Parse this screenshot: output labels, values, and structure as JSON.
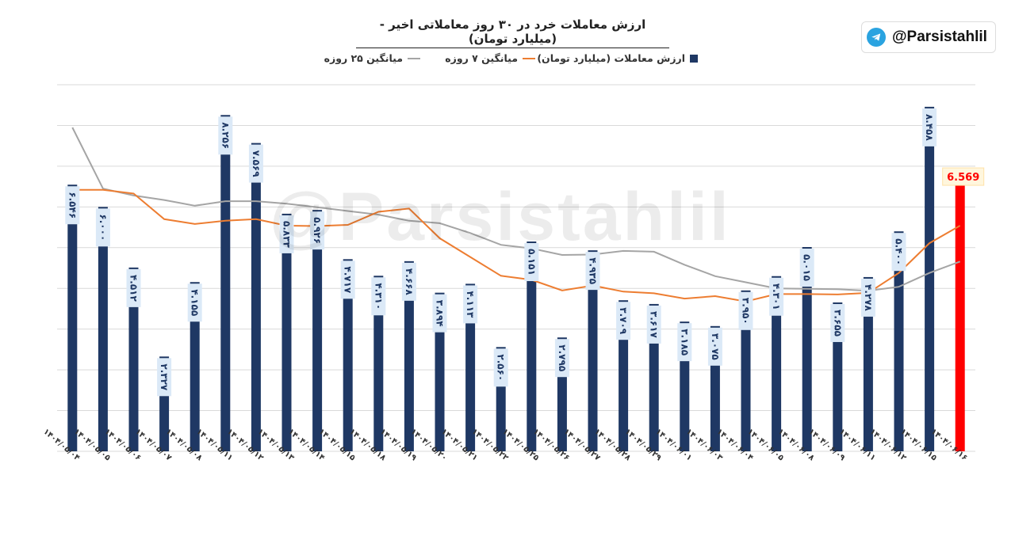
{
  "header": {
    "title": "ارزش معاملات خرد در ۳۰ روز معاملاتی اخیر - (میلیارد تومان)",
    "channel_handle": "@Parsistahlil",
    "channel_icon": "telegram-icon",
    "watermark": "@Parsistahlil"
  },
  "colors": {
    "bar": "#1f3864",
    "last_bar": "#ff0000",
    "ma7": "#ed7d31",
    "ma25": "#a5a5a5",
    "grid": "#d9d9d9",
    "label_bg": "#dbe9f7"
  },
  "chart_data": {
    "type": "bar",
    "title": "ارزش معاملات خرد در ۳۰ روز معاملاتی اخیر - (میلیارد تومان)",
    "legend_position": "top",
    "grid": true,
    "ylim": [
      0,
      9
    ],
    "categories": [
      "۱۴۰۴/۰۵/۰۴",
      "۱۴۰۴/۰۵/۰۵",
      "۱۴۰۴/۰۵/۰۶",
      "۱۴۰۴/۰۵/۰۷",
      "۱۴۰۴/۰۵/۰۸",
      "۱۴۰۴/۰۵/۱۱",
      "۱۴۰۴/۰۵/۱۲",
      "۱۴۰۴/۰۵/۱۳",
      "۱۴۰۴/۰۵/۱۴",
      "۱۴۰۴/۰۵/۱۵",
      "۱۴۰۴/۰۵/۱۸",
      "۱۴۰۴/۰۵/۱۹",
      "۱۴۰۴/۰۵/۲۰",
      "۱۴۰۴/۰۵/۲۱",
      "۱۴۰۴/۰۵/۲۲",
      "۱۴۰۴/۰۵/۲۵",
      "۱۴۰۴/۰۵/۲۶",
      "۱۴۰۴/۰۵/۲۷",
      "۱۴۰۴/۰۵/۲۸",
      "۱۴۰۴/۰۵/۲۹",
      "۱۴۰۴/۰۶/۰۱",
      "۱۴۰۴/۰۶/۰۳",
      "۱۴۰۴/۰۶/۰۴",
      "۱۴۰۴/۰۶/۰۵",
      "۱۴۰۴/۰۶/۰۸",
      "۱۴۰۴/۰۶/۰۹",
      "۱۴۰۴/۰۶/۱۱",
      "۱۴۰۴/۰۶/۱۲",
      "۱۴۰۴/۰۶/۱۵",
      "۱۴۰۴/۰۶/۱۶"
    ],
    "series": [
      {
        "name": "ارزش معاملات (میلیارد تومان)",
        "kind": "bar",
        "values": [
          6.546,
          6.0,
          4.512,
          2.327,
          4.155,
          8.256,
          7.569,
          5.833,
          5.926,
          4.717,
          4.31,
          4.668,
          3.894,
          4.113,
          2.56,
          5.151,
          2.795,
          4.935,
          3.709,
          3.617,
          3.185,
          3.075,
          3.95,
          4.301,
          5.015,
          3.655,
          4.278,
          5.4,
          8.458,
          6.569
        ],
        "labels": [
          "۶.۵۴۶",
          "۶.۰۰۰",
          "۴.۵۱۲",
          "۲.۳۲۷",
          "۴.۱۵۵",
          "۸.۲۵۶",
          "۷.۵۶۹",
          "۵.۸۳۳",
          "۵.۹۲۶",
          "۴.۷۱۷",
          "۴.۳۱۰",
          "۴.۶۶۸",
          "۳.۸۹۴",
          "۴.۱۱۳",
          "۲.۵۶۰",
          "۵.۱۵۱",
          "۲.۷۹۵",
          "۴.۹۳۵",
          "۳.۷۰۹",
          "۳.۶۱۷",
          "۳.۱۸۵",
          "۳.۰۷۵",
          "۳.۹۵۰",
          "۴.۳۰۱",
          "۵.۰۱۵",
          "۳.۶۵۵",
          "۴.۲۷۸",
          "۵.۴۰۰",
          "۸.۴۵۸",
          "6.569"
        ]
      },
      {
        "name": "میانگین ۷ روزه",
        "kind": "line",
        "values": [
          6.42,
          6.42,
          6.33,
          5.7,
          5.58,
          5.66,
          5.7,
          5.54,
          5.53,
          5.56,
          5.88,
          5.96,
          5.23,
          4.77,
          4.31,
          4.21,
          3.95,
          4.07,
          3.92,
          3.88,
          3.75,
          3.81,
          3.68,
          3.86,
          3.86,
          3.85,
          3.89,
          4.38,
          5.11,
          5.54
        ]
      },
      {
        "name": "میانگین ۲۵ روزه",
        "kind": "line",
        "values": [
          7.95,
          6.45,
          6.28,
          6.17,
          6.03,
          6.14,
          6.14,
          6.08,
          5.99,
          5.9,
          5.81,
          5.66,
          5.6,
          5.36,
          5.07,
          4.98,
          4.82,
          4.83,
          4.92,
          4.9,
          4.58,
          4.3,
          4.15,
          4.0,
          3.99,
          3.98,
          3.94,
          4.04,
          4.38,
          4.66
        ]
      }
    ]
  }
}
